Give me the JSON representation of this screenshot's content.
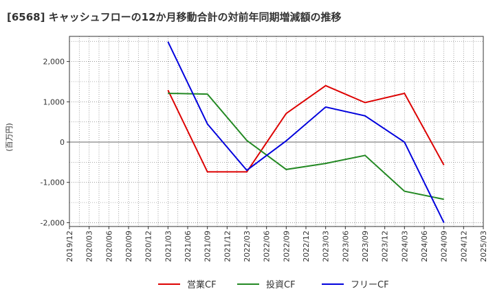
{
  "chart_data": {
    "type": "line",
    "title": "[6568]  キャッシュフローの12か月移動合計の対前年同期増減額の推移",
    "ylabel": "(百万円)",
    "xlabel": "",
    "categories": [
      "2019/12",
      "2020/03",
      "2020/06",
      "2020/09",
      "2020/12",
      "2021/03",
      "2021/06",
      "2021/09",
      "2021/12",
      "2022/03",
      "2022/06",
      "2022/09",
      "2022/12",
      "2023/03",
      "2023/06",
      "2023/09",
      "2023/12",
      "2024/03",
      "2024/06",
      "2024/09",
      "2024/12",
      "2025/03"
    ],
    "yticks": [
      2000,
      1000,
      0,
      -1000,
      -2000
    ],
    "ytick_labels": [
      "2,000",
      "1,000",
      "0",
      "-1,000",
      "-2,000"
    ],
    "ylim": [
      -2100,
      2600
    ],
    "grid": true,
    "legend_position": "bottom",
    "series": [
      {
        "name": "営業CF",
        "color": "#dd0000",
        "x": [
          "2021/03",
          "2021/09",
          "2022/03",
          "2022/09",
          "2023/03",
          "2023/09",
          "2024/03",
          "2024/09"
        ],
        "values": [
          1290,
          -740,
          -740,
          710,
          1400,
          980,
          1210,
          -570
        ]
      },
      {
        "name": "投資CF",
        "color": "#228822",
        "x": [
          "2021/03",
          "2021/09",
          "2022/03",
          "2022/09",
          "2023/03",
          "2023/09",
          "2024/03",
          "2024/09"
        ],
        "values": [
          1210,
          1190,
          40,
          -680,
          -530,
          -330,
          -1220,
          -1420
        ]
      },
      {
        "name": "フリーCF",
        "color": "#0000dd",
        "x": [
          "2021/03",
          "2021/09",
          "2022/03",
          "2022/09",
          "2023/03",
          "2023/09",
          "2024/03",
          "2024/09"
        ],
        "values": [
          2490,
          450,
          -700,
          30,
          870,
          650,
          0,
          -2000
        ]
      }
    ]
  }
}
